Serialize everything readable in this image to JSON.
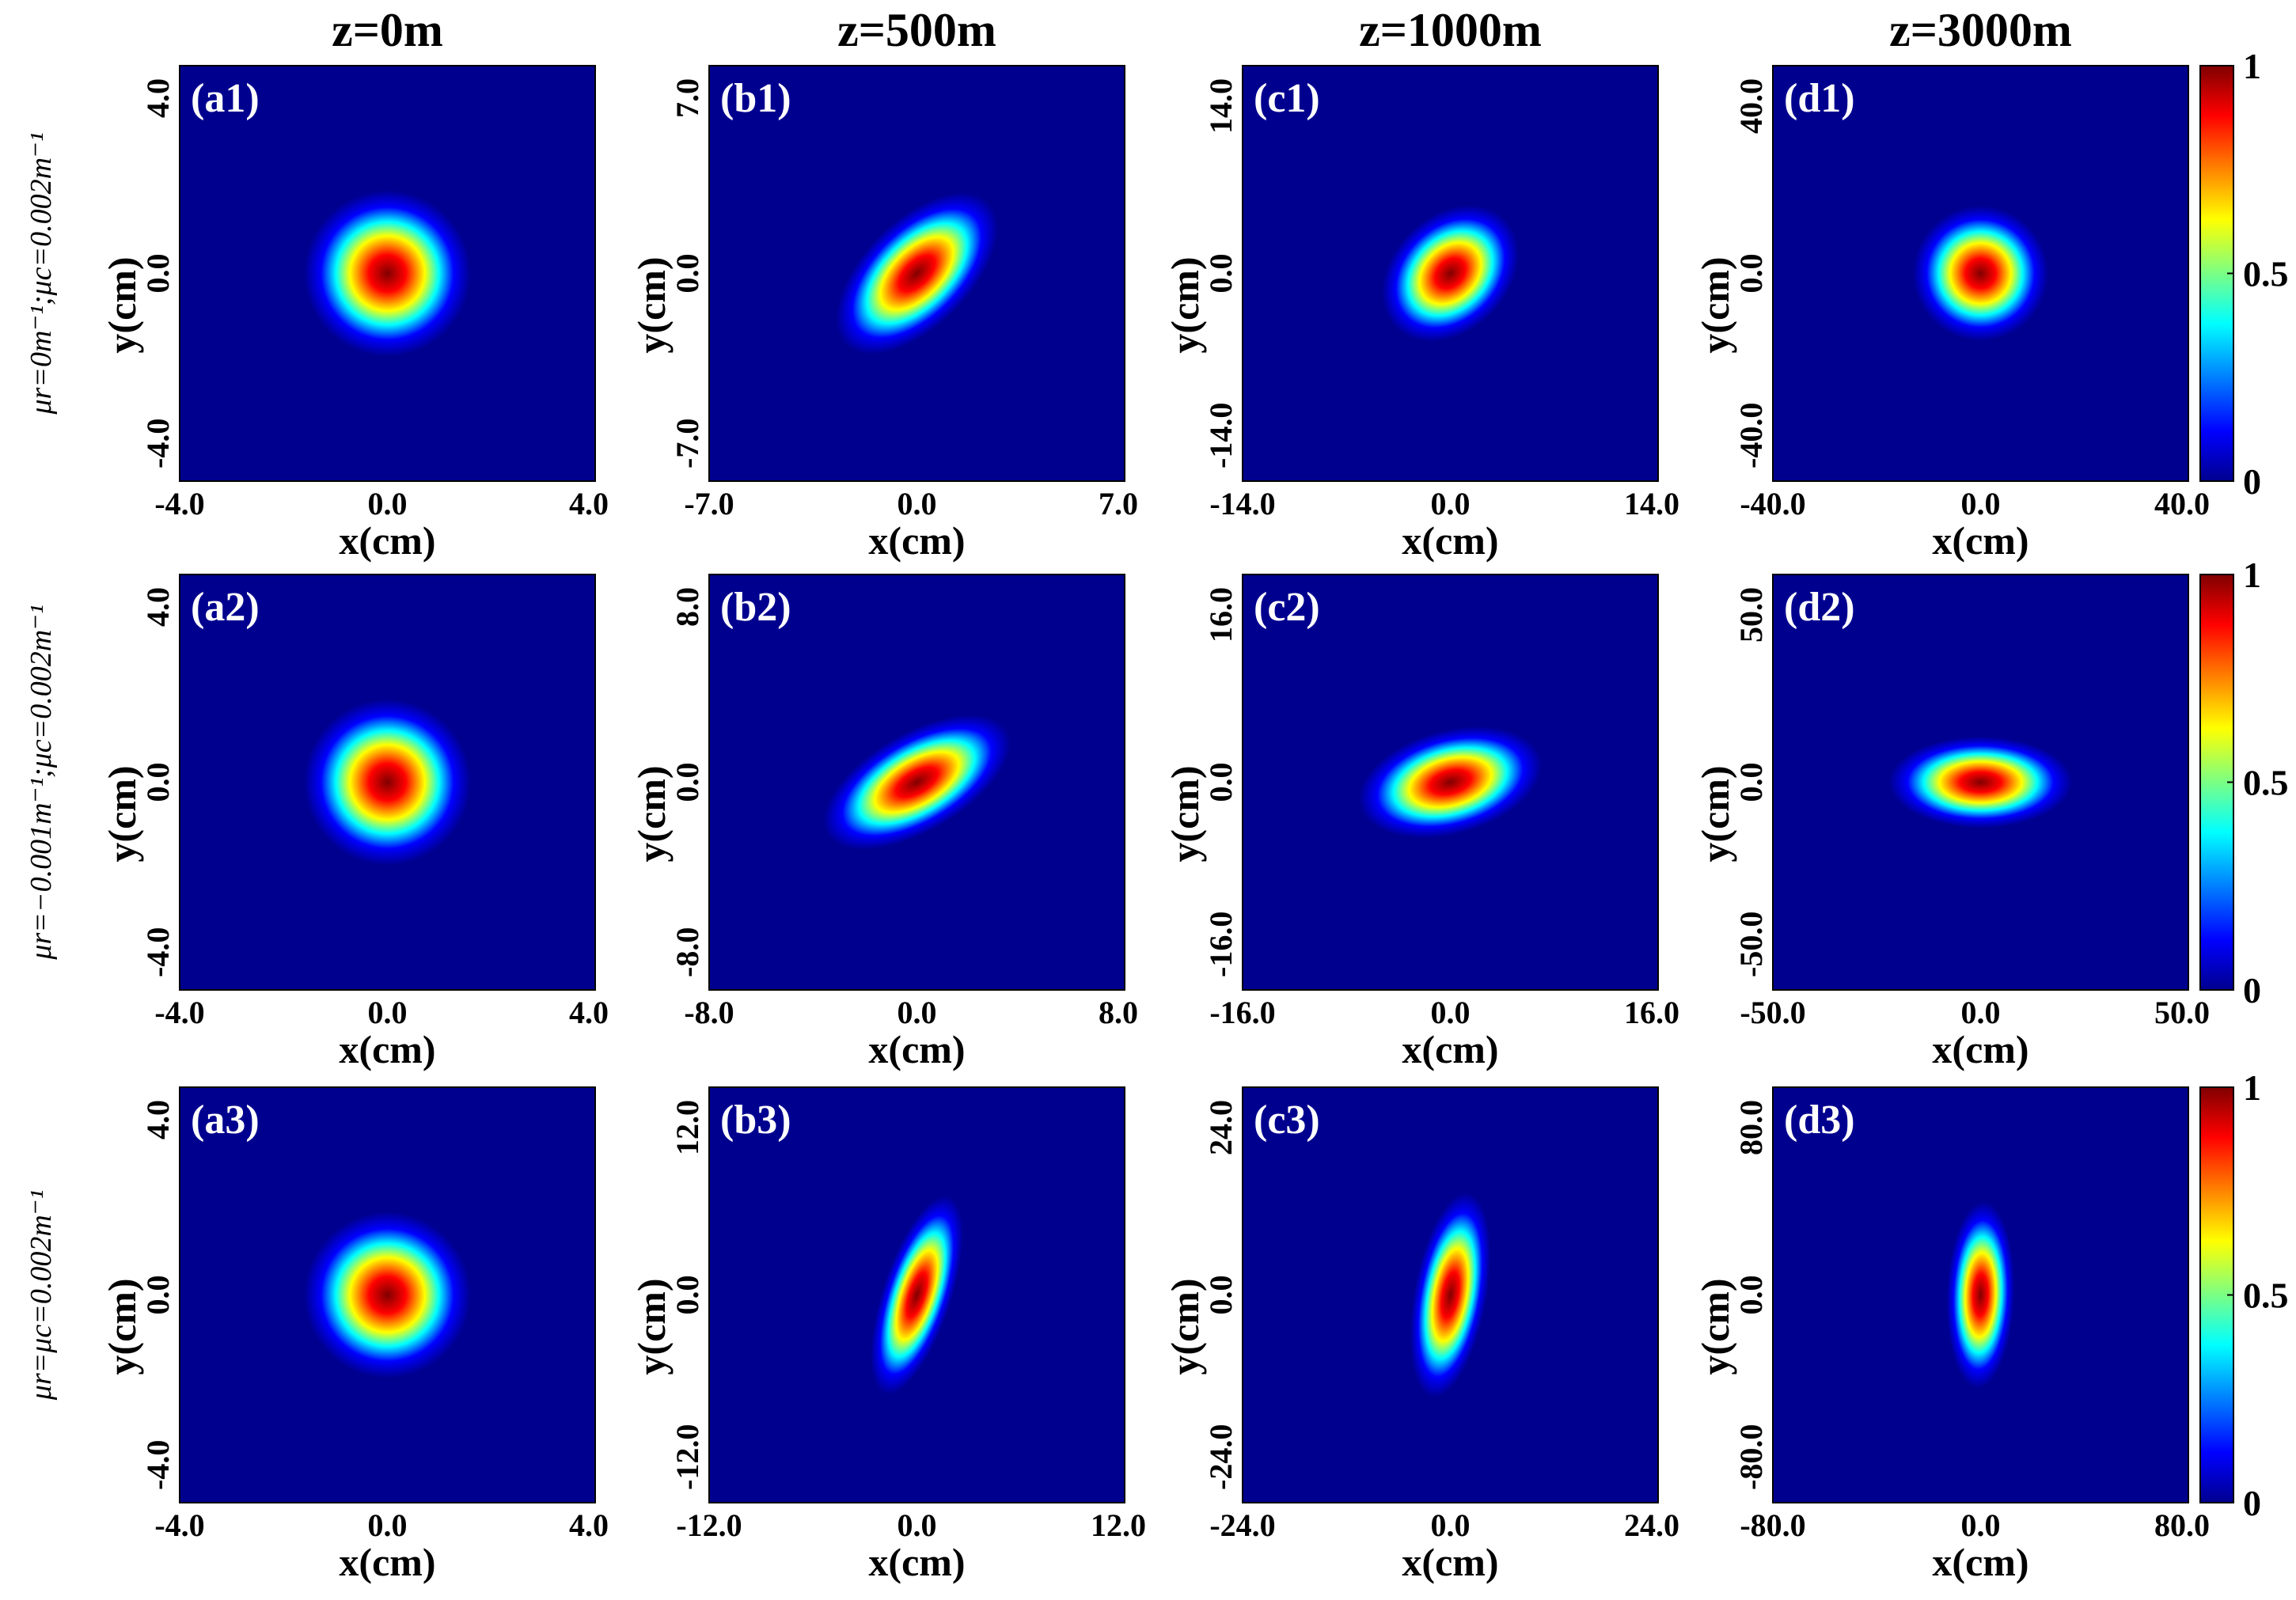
{
  "column_titles": [
    "z=0m",
    "z=500m",
    "z=1000m",
    "z=3000m"
  ],
  "row_labels": [
    "μr=0m⁻¹;μc=0.002m⁻¹",
    "μr=−0.001m⁻¹;μc=0.002m⁻¹",
    "μr=μc=0.002m⁻¹"
  ],
  "colorbar": {
    "colormap": "jet",
    "ticks": [
      "1",
      "0.5",
      "0"
    ],
    "tick_values": [
      1,
      0.5,
      0
    ],
    "range": [
      0,
      1
    ]
  },
  "colormap_stops": [
    "#00008f",
    "#0000ff",
    "#00ffff",
    "#ffff00",
    "#ff0000",
    "#800000"
  ],
  "chart_data": [
    {
      "type": "heatmap",
      "panel_label": "(a1)",
      "xlabel": "x(cm)",
      "ylabel": "y(cm)",
      "xlim": [
        -4.0,
        4.0
      ],
      "ylim": [
        -4.0,
        4.0
      ],
      "xtick_labels": [
        "-4.0",
        "0.0",
        "4.0"
      ],
      "ytick_labels": [
        "4.0",
        "0.0",
        "-4.0"
      ],
      "peak_intensity": 1,
      "beam": {
        "center": [
          0,
          0
        ],
        "semi_major_extent": 1.6,
        "semi_minor_extent": 1.6,
        "major_axis_angle_deg": 0
      }
    },
    {
      "type": "heatmap",
      "panel_label": "(b1)",
      "xlabel": "x(cm)",
      "ylabel": "y(cm)",
      "xlim": [
        -7.0,
        7.0
      ],
      "ylim": [
        -7.0,
        7.0
      ],
      "xtick_labels": [
        "-7.0",
        "0.0",
        "7.0"
      ],
      "ytick_labels": [
        "7.0",
        "0.0",
        "-7.0"
      ],
      "peak_intensity": 1,
      "beam": {
        "center": [
          0,
          0
        ],
        "semi_major_extent": 3.4,
        "semi_minor_extent": 1.8,
        "major_axis_angle_deg": 45
      }
    },
    {
      "type": "heatmap",
      "panel_label": "(c1)",
      "xlabel": "x(cm)",
      "ylabel": "y(cm)",
      "xlim": [
        -14.0,
        14.0
      ],
      "ylim": [
        -14.0,
        14.0
      ],
      "xtick_labels": [
        "-14.0",
        "0.0",
        "14.0"
      ],
      "ytick_labels": [
        "14.0",
        "0.0",
        "-14.0"
      ],
      "peak_intensity": 1,
      "beam": {
        "center": [
          0,
          0
        ],
        "semi_major_extent": 5.2,
        "semi_minor_extent": 3.9,
        "major_axis_angle_deg": 45
      }
    },
    {
      "type": "heatmap",
      "panel_label": "(d1)",
      "xlabel": "x(cm)",
      "ylabel": "y(cm)",
      "xlim": [
        -40.0,
        40.0
      ],
      "ylim": [
        -40.0,
        40.0
      ],
      "xtick_labels": [
        "-40.0",
        "0.0",
        "40.0"
      ],
      "ytick_labels": [
        "40.0",
        "0.0",
        "-40.0"
      ],
      "peak_intensity": 1,
      "beam": {
        "center": [
          0,
          0
        ],
        "semi_major_extent": 13,
        "semi_minor_extent": 13,
        "major_axis_angle_deg": 0
      }
    },
    {
      "type": "heatmap",
      "panel_label": "(a2)",
      "xlabel": "x(cm)",
      "ylabel": "y(cm)",
      "xlim": [
        -4.0,
        4.0
      ],
      "ylim": [
        -4.0,
        4.0
      ],
      "xtick_labels": [
        "-4.0",
        "0.0",
        "4.0"
      ],
      "ytick_labels": [
        "4.0",
        "0.0",
        "-4.0"
      ],
      "peak_intensity": 1,
      "beam": {
        "center": [
          0,
          0
        ],
        "semi_major_extent": 1.6,
        "semi_minor_extent": 1.6,
        "major_axis_angle_deg": 0
      }
    },
    {
      "type": "heatmap",
      "panel_label": "(b2)",
      "xlabel": "x(cm)",
      "ylabel": "y(cm)",
      "xlim": [
        -8.0,
        8.0
      ],
      "ylim": [
        -8.0,
        8.0
      ],
      "xtick_labels": [
        "-8.0",
        "0.0",
        "8.0"
      ],
      "ytick_labels": [
        "8.0",
        "0.0",
        "-8.0"
      ],
      "peak_intensity": 1,
      "beam": {
        "center": [
          0,
          0
        ],
        "semi_major_extent": 4.0,
        "semi_minor_extent": 1.9,
        "major_axis_angle_deg": 30
      }
    },
    {
      "type": "heatmap",
      "panel_label": "(c2)",
      "xlabel": "x(cm)",
      "ylabel": "y(cm)",
      "xlim": [
        -16.0,
        16.0
      ],
      "ylim": [
        -16.0,
        16.0
      ],
      "xtick_labels": [
        "-16.0",
        "0.0",
        "16.0"
      ],
      "ytick_labels": [
        "16.0",
        "0.0",
        "-16.0"
      ],
      "peak_intensity": 1,
      "beam": {
        "center": [
          0,
          0
        ],
        "semi_major_extent": 7.2,
        "semi_minor_extent": 4.0,
        "major_axis_angle_deg": 15
      }
    },
    {
      "type": "heatmap",
      "panel_label": "(d2)",
      "xlabel": "x(cm)",
      "ylabel": "y(cm)",
      "xlim": [
        -50.0,
        50.0
      ],
      "ylim": [
        -50.0,
        50.0
      ],
      "xtick_labels": [
        "-50.0",
        "0.0",
        "50.0"
      ],
      "ytick_labels": [
        "50.0",
        "0.0",
        "-50.0"
      ],
      "peak_intensity": 1,
      "beam": {
        "center": [
          0,
          0
        ],
        "semi_major_extent": 22,
        "semi_minor_extent": 11,
        "major_axis_angle_deg": 0
      }
    },
    {
      "type": "heatmap",
      "panel_label": "(a3)",
      "xlabel": "x(cm)",
      "ylabel": "y(cm)",
      "xlim": [
        -4.0,
        4.0
      ],
      "ylim": [
        -4.0,
        4.0
      ],
      "xtick_labels": [
        "-4.0",
        "0.0",
        "4.0"
      ],
      "ytick_labels": [
        "4.0",
        "0.0",
        "-4.0"
      ],
      "peak_intensity": 1,
      "beam": {
        "center": [
          0,
          0
        ],
        "semi_major_extent": 1.6,
        "semi_minor_extent": 1.6,
        "major_axis_angle_deg": 0
      }
    },
    {
      "type": "heatmap",
      "panel_label": "(b3)",
      "xlabel": "x(cm)",
      "ylabel": "y(cm)",
      "xlim": [
        -12.0,
        12.0
      ],
      "ylim": [
        -12.0,
        12.0
      ],
      "xtick_labels": [
        "-12.0",
        "0.0",
        "12.0"
      ],
      "ytick_labels": [
        "12.0",
        "0.0",
        "-12.0"
      ],
      "peak_intensity": 1,
      "beam": {
        "center": [
          0,
          0
        ],
        "semi_major_extent": 6.0,
        "semi_minor_extent": 2.0,
        "major_axis_angle_deg": 72
      }
    },
    {
      "type": "heatmap",
      "panel_label": "(c3)",
      "xlabel": "x(cm)",
      "ylabel": "y(cm)",
      "xlim": [
        -24.0,
        24.0
      ],
      "ylim": [
        -24.0,
        24.0
      ],
      "xtick_labels": [
        "-24.0",
        "0.0",
        "24.0"
      ],
      "ytick_labels": [
        "24.0",
        "0.0",
        "-24.0"
      ],
      "peak_intensity": 1,
      "beam": {
        "center": [
          0,
          0
        ],
        "semi_major_extent": 12.0,
        "semi_minor_extent": 4.2,
        "major_axis_angle_deg": 80
      }
    },
    {
      "type": "heatmap",
      "panel_label": "(d3)",
      "xlabel": "x(cm)",
      "ylabel": "y(cm)",
      "xlim": [
        -80.0,
        80.0
      ],
      "ylim": [
        -80.0,
        80.0
      ],
      "xtick_labels": [
        "-80.0",
        "0.0",
        "80.0"
      ],
      "ytick_labels": [
        "80.0",
        "0.0",
        "-80.0"
      ],
      "peak_intensity": 1,
      "beam": {
        "center": [
          0,
          0
        ],
        "semi_major_extent": 36,
        "semi_minor_extent": 13,
        "major_axis_angle_deg": 88
      }
    }
  ]
}
